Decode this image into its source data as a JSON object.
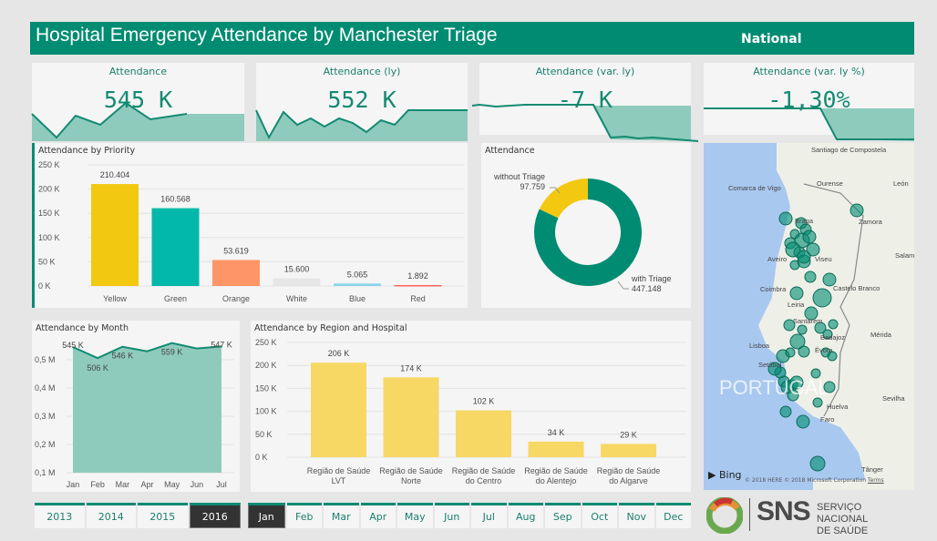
{
  "header": {
    "title": "Hospital Emergency Attendance by Manchester Triage",
    "scope": "National"
  },
  "kpis": [
    {
      "label": "Attendance",
      "value": "545 K"
    },
    {
      "label": "Attendance (ly)",
      "value": "552 K"
    },
    {
      "label": "Attendance (var. ly)",
      "value": "-7 K"
    },
    {
      "label": "Attendance (var. ly %)",
      "value": "-1,30%"
    }
  ],
  "colors": {
    "brand": "#008c72",
    "accent_area": "#8fcbbd",
    "yellow": "#f2c811",
    "green": "#01b8aa",
    "orange": "#fd9566",
    "white": "#e6e6e6",
    "blue": "#8ad4eb",
    "red": "#fd625e",
    "region_bar": "#f7d865"
  },
  "chart_data": [
    {
      "type": "bar",
      "title": "Attendance by Priority",
      "categories": [
        "Yellow",
        "Green",
        "Orange",
        "White",
        "Blue",
        "Red"
      ],
      "values": [
        210404,
        160568,
        53619,
        15600,
        5065,
        1892
      ],
      "data_labels": [
        "210.404",
        "160.568",
        "53.619",
        "15.600",
        "5.065",
        "1.892"
      ],
      "ylim": [
        0,
        250000
      ],
      "yticks": [
        "0 K",
        "50 K",
        "100 K",
        "150 K",
        "200 K",
        "250 K"
      ],
      "grid": true
    },
    {
      "type": "pie",
      "title": "Attendance",
      "donut": true,
      "slices": [
        {
          "name": "without Triage",
          "value": 97759,
          "label": "97.759",
          "color": "#f2c811"
        },
        {
          "name": "with Triage",
          "value": 447148,
          "label": "447.148",
          "color": "#008c72"
        }
      ]
    },
    {
      "type": "area",
      "title": "Attendance by Month",
      "categories": [
        "Jan",
        "Feb",
        "Mar",
        "Apr",
        "May",
        "Jun",
        "Jul"
      ],
      "values": [
        545,
        506,
        546,
        530,
        559,
        540,
        547
      ],
      "data_labels": [
        "545 K",
        "506 K",
        "546 K",
        null,
        "559 K",
        null,
        "547 K"
      ],
      "ylim": [
        0.1,
        0.56
      ],
      "yticks": [
        "0,1 M",
        "0,2 M",
        "0,3 M",
        "0,4 M",
        "0,5 M"
      ],
      "grid": true
    },
    {
      "type": "bar",
      "title": "Attendance by Region and Hospital",
      "categories": [
        [
          "Região de Saúde",
          "LVT"
        ],
        [
          "Região de Saúde",
          "Norte"
        ],
        [
          "Região de Saúde",
          "do Centro"
        ],
        [
          "Região de Saúde",
          "do Alentejo"
        ],
        [
          "Região de Saúde",
          "do Algarve"
        ]
      ],
      "values": [
        206,
        174,
        102,
        34,
        29
      ],
      "data_labels": [
        "206 K",
        "174 K",
        "102 K",
        "34 K",
        "29 K"
      ],
      "ylim": [
        0,
        250
      ],
      "yticks": [
        "0 K",
        "50 K",
        "100 K",
        "150 K",
        "200 K",
        "250 K"
      ],
      "grid": true
    }
  ],
  "map": {
    "labels": [
      "Santiago de Compostela",
      "Comarca de Vigo",
      "Ourense",
      "León",
      "Braga",
      "Zamora",
      "Aveiro",
      "Viseu",
      "Salama",
      "Coimbra",
      "Castelo Branco",
      "Leiria",
      "Santarém",
      "Badajoz",
      "Mérida",
      "Lisboa",
      "Évora",
      "Setúbal",
      "PORTUGAL",
      "Sevilha",
      "Huelva",
      "Faro",
      "Tânger"
    ],
    "provider": "Bing",
    "copyright": "© 2018 HERE © 2018 Microsoft Corporation",
    "terms": "Terms"
  },
  "logo": {
    "short": "SNS",
    "line1": "SERVIÇO NACIONAL",
    "line2": "DE SAÚDE"
  },
  "years": {
    "options": [
      "2013",
      "2014",
      "2015",
      "2016"
    ],
    "selected": "2016"
  },
  "months": {
    "options": [
      "Jan",
      "Feb",
      "Mar",
      "Apr",
      "May",
      "Jun",
      "Jul",
      "Aug",
      "Sep",
      "Oct",
      "Nov",
      "Dec"
    ],
    "selected": "Jan"
  }
}
